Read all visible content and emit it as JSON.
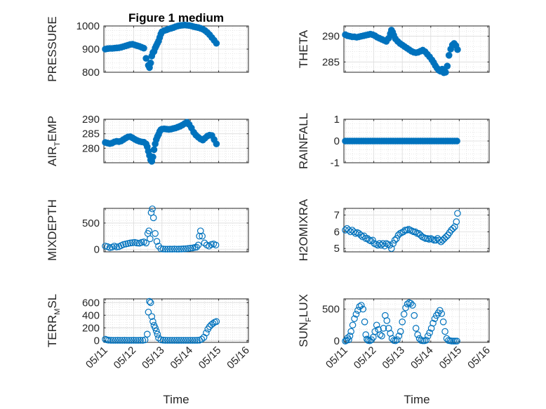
{
  "figure": {
    "title": "Figure 1 medium",
    "xlabel": "Time",
    "marker_color": "#0072BD",
    "axes_color": "#262626",
    "grid_color": "#d9d9d9"
  },
  "chart_data": [
    {
      "type": "scatter",
      "ylabel": "PRESSURE",
      "ylim": [
        800,
        1000
      ],
      "yticks": [
        "800",
        "900",
        "1000"
      ],
      "ytick_values": [
        800,
        900,
        1000
      ],
      "xlim": [
        0,
        4.1
      ],
      "grid": true,
      "filled": true,
      "x": [
        0,
        0.08,
        0.16,
        0.24,
        0.32,
        0.4,
        0.48,
        0.56,
        0.64,
        0.72,
        0.8,
        0.88,
        0.96,
        1.04,
        1.12,
        1.2,
        1.28,
        1.36,
        1.44,
        1.52,
        1.56,
        1.6,
        1.64,
        1.68,
        1.72,
        1.76,
        1.8,
        1.84,
        1.88,
        1.92,
        1.96,
        2.0,
        2.08,
        2.16,
        2.24,
        2.32,
        2.4,
        2.48,
        2.56,
        2.64,
        2.72,
        2.8,
        2.88,
        2.96,
        3.04,
        3.12,
        3.2,
        3.28,
        3.36,
        3.44,
        3.52,
        3.6,
        3.68,
        3.76,
        3.84,
        3.92
      ],
      "y": [
        900,
        902,
        903,
        903,
        904,
        905,
        906,
        908,
        911,
        914,
        917,
        920,
        921,
        918,
        915,
        912,
        908,
        904,
        860,
        830,
        820,
        840,
        870,
        885,
        890,
        905,
        915,
        925,
        935,
        950,
        965,
        975,
        980,
        983,
        987,
        990,
        993,
        997,
        1000,
        1002,
        1003,
        1004,
        1003,
        1002,
        1000,
        997,
        995,
        993,
        990,
        986,
        980,
        972,
        962,
        950,
        938,
        925
      ]
    },
    {
      "type": "scatter",
      "ylabel": "THETA",
      "ylim": [
        283,
        292
      ],
      "yticks": [
        "285",
        "290"
      ],
      "ytick_values": [
        285,
        290
      ],
      "xlim": [
        0,
        4.1
      ],
      "grid": true,
      "filled": true,
      "x": [
        0,
        0.08,
        0.16,
        0.24,
        0.32,
        0.4,
        0.48,
        0.56,
        0.64,
        0.72,
        0.8,
        0.88,
        0.96,
        1.04,
        1.12,
        1.2,
        1.28,
        1.36,
        1.44,
        1.52,
        1.58,
        1.62,
        1.66,
        1.7,
        1.76,
        1.84,
        1.92,
        2.0,
        2.08,
        2.16,
        2.24,
        2.32,
        2.4,
        2.48,
        2.56,
        2.64,
        2.72,
        2.8,
        2.88,
        2.96,
        3.04,
        3.1,
        3.16,
        3.22,
        3.28,
        3.34,
        3.4,
        3.46,
        3.52,
        3.58,
        3.64,
        3.7,
        3.76,
        3.82,
        3.88,
        3.94
      ],
      "y": [
        290.3,
        290.1,
        290.0,
        289.9,
        289.9,
        289.8,
        289.9,
        290.0,
        290.1,
        290.2,
        290.3,
        290.4,
        290.3,
        290.1,
        289.8,
        289.6,
        289.4,
        289.2,
        289.0,
        289.6,
        290.5,
        291.2,
        290.8,
        290.2,
        289.5,
        289.0,
        288.6,
        288.3,
        288.0,
        287.7,
        287.4,
        287.1,
        286.9,
        286.8,
        286.9,
        287.1,
        287.3,
        287.0,
        286.5,
        286.0,
        285.4,
        284.9,
        284.3,
        283.8,
        283.4,
        283.2,
        283.6,
        282.9,
        283.0,
        284.2,
        286.3,
        287.5,
        288.3,
        288.6,
        288.2,
        287.4
      ]
    },
    {
      "type": "scatter",
      "ylabel": "AIR_TEMP",
      "ylabel_parts": [
        "AIR",
        "T",
        "EMP"
      ],
      "ylim": [
        275,
        290
      ],
      "yticks": [
        "280",
        "285",
        "290"
      ],
      "ytick_values": [
        280,
        285,
        290
      ],
      "xlim": [
        0,
        4.1
      ],
      "grid": true,
      "filled": true,
      "x": [
        0,
        0.08,
        0.16,
        0.24,
        0.32,
        0.4,
        0.48,
        0.56,
        0.64,
        0.72,
        0.8,
        0.88,
        0.96,
        1.04,
        1.12,
        1.2,
        1.28,
        1.36,
        1.44,
        1.48,
        1.52,
        1.56,
        1.6,
        1.64,
        1.68,
        1.72,
        1.76,
        1.8,
        1.84,
        1.88,
        1.92,
        1.96,
        2.0,
        2.08,
        2.16,
        2.24,
        2.32,
        2.4,
        2.48,
        2.56,
        2.64,
        2.72,
        2.8,
        2.88,
        2.96,
        3.04,
        3.12,
        3.2,
        3.28,
        3.36,
        3.44,
        3.52,
        3.6,
        3.68,
        3.76,
        3.84,
        3.92
      ],
      "y": [
        282.0,
        281.8,
        281.6,
        281.8,
        282.2,
        282.4,
        282.3,
        282.5,
        283.0,
        283.5,
        283.9,
        284.0,
        283.6,
        283.1,
        282.7,
        282.4,
        282.2,
        282.1,
        281.5,
        280.5,
        279.0,
        277.5,
        276.0,
        275.5,
        277.0,
        279.5,
        281.5,
        283.0,
        284.0,
        284.8,
        285.8,
        286.4,
        286.6,
        286.7,
        286.6,
        286.5,
        286.6,
        286.8,
        287.0,
        287.3,
        287.6,
        288.0,
        288.5,
        289.0,
        288.2,
        287.0,
        285.5,
        284.5,
        283.8,
        283.2,
        282.8,
        283.5,
        284.2,
        284.5,
        284.4,
        283.0,
        281.5
      ]
    },
    {
      "type": "scatter",
      "ylabel": "RAINFALL",
      "ylim": [
        -1,
        1
      ],
      "yticks": [
        "-1",
        "0",
        "1"
      ],
      "ytick_values": [
        -1,
        0,
        1
      ],
      "xlim": [
        0,
        4.1
      ],
      "grid": true,
      "filled": true,
      "x": [
        0,
        0.08,
        0.16,
        0.24,
        0.32,
        0.4,
        0.48,
        0.56,
        0.64,
        0.72,
        0.8,
        0.88,
        0.96,
        1.04,
        1.12,
        1.2,
        1.28,
        1.36,
        1.44,
        1.52,
        1.6,
        1.68,
        1.76,
        1.84,
        1.92,
        2.0,
        2.08,
        2.16,
        2.24,
        2.32,
        2.4,
        2.48,
        2.56,
        2.64,
        2.72,
        2.8,
        2.88,
        2.96,
        3.04,
        3.12,
        3.2,
        3.28,
        3.36,
        3.44,
        3.52,
        3.6,
        3.68,
        3.76,
        3.84,
        3.92
      ],
      "y": [
        0,
        0,
        0,
        0,
        0,
        0,
        0,
        0,
        0,
        0,
        0,
        0,
        0,
        0,
        0,
        0,
        0,
        0,
        0,
        0,
        0,
        0,
        0,
        0,
        0,
        0,
        0,
        0,
        0,
        0,
        0,
        0,
        0,
        0,
        0,
        0,
        0,
        0,
        0,
        0,
        0,
        0,
        0,
        0,
        0,
        0,
        0,
        0,
        0,
        0
      ]
    },
    {
      "type": "scatter",
      "ylabel": "MIXDEPTH",
      "ylim": [
        -50,
        780
      ],
      "yticks": [
        "0",
        "500"
      ],
      "ytick_values": [
        0,
        500
      ],
      "xlim": [
        0,
        4.1
      ],
      "grid": true,
      "filled": false,
      "x": [
        0,
        0.08,
        0.16,
        0.24,
        0.32,
        0.4,
        0.48,
        0.56,
        0.64,
        0.72,
        0.8,
        0.88,
        0.96,
        1.04,
        1.12,
        1.2,
        1.28,
        1.36,
        1.44,
        1.5,
        1.54,
        1.58,
        1.62,
        1.66,
        1.7,
        1.76,
        1.82,
        1.88,
        1.96,
        2.04,
        2.12,
        2.2,
        2.28,
        2.36,
        2.44,
        2.52,
        2.6,
        2.68,
        2.76,
        2.84,
        2.92,
        3.0,
        3.08,
        3.16,
        3.22,
        3.28,
        3.32,
        3.36,
        3.42,
        3.5,
        3.58,
        3.66,
        3.74,
        3.82,
        3.9
      ],
      "y": [
        60,
        50,
        30,
        40,
        60,
        45,
        50,
        70,
        90,
        100,
        110,
        120,
        125,
        130,
        120,
        115,
        130,
        140,
        120,
        300,
        350,
        200,
        700,
        770,
        600,
        300,
        150,
        60,
        10,
        5,
        2,
        2,
        3,
        2,
        5,
        2,
        3,
        5,
        8,
        10,
        15,
        20,
        25,
        35,
        40,
        80,
        250,
        350,
        250,
        120,
        80,
        60,
        90,
        100,
        80
      ]
    },
    {
      "type": "scatter",
      "ylabel": "H2OMIXRA",
      "ylim": [
        4.8,
        7.4
      ],
      "yticks": [
        "5",
        "6",
        "7"
      ],
      "ytick_values": [
        5,
        6,
        7
      ],
      "xlim": [
        0,
        4.1
      ],
      "grid": true,
      "filled": false,
      "x": [
        0,
        0.06,
        0.12,
        0.18,
        0.24,
        0.3,
        0.36,
        0.42,
        0.48,
        0.54,
        0.6,
        0.66,
        0.72,
        0.78,
        0.84,
        0.9,
        0.96,
        1.02,
        1.08,
        1.14,
        1.2,
        1.26,
        1.32,
        1.38,
        1.44,
        1.5,
        1.56,
        1.62,
        1.68,
        1.74,
        1.8,
        1.86,
        1.92,
        1.98,
        2.04,
        2.1,
        2.16,
        2.22,
        2.28,
        2.34,
        2.4,
        2.46,
        2.52,
        2.58,
        2.64,
        2.7,
        2.76,
        2.82,
        2.88,
        2.94,
        3.0,
        3.06,
        3.12,
        3.18,
        3.24,
        3.3,
        3.36,
        3.42,
        3.48,
        3.54,
        3.6,
        3.66,
        3.72,
        3.78,
        3.84,
        3.9,
        3.94
      ],
      "y": [
        6.1,
        6.2,
        6.1,
        6.0,
        6.1,
        6.0,
        5.9,
        5.95,
        5.9,
        5.8,
        5.7,
        5.75,
        5.6,
        5.6,
        5.5,
        5.45,
        5.5,
        5.3,
        5.25,
        5.2,
        5.3,
        5.2,
        5.3,
        5.15,
        5.3,
        5.25,
        5.2,
        5.0,
        5.3,
        5.5,
        5.6,
        5.8,
        5.9,
        5.95,
        6.0,
        6.1,
        6.1,
        6.15,
        6.1,
        6.05,
        6.0,
        6.0,
        5.9,
        5.9,
        5.8,
        5.7,
        5.65,
        5.6,
        5.6,
        5.55,
        5.6,
        5.55,
        5.5,
        5.5,
        5.6,
        5.5,
        5.4,
        5.5,
        5.6,
        5.7,
        5.8,
        5.95,
        6.1,
        6.2,
        6.3,
        6.6,
        7.1
      ]
    },
    {
      "type": "scatter",
      "ylabel": "TERR_MSL",
      "ylabel_parts": [
        "TERR",
        "M",
        "SL"
      ],
      "ylim": [
        -30,
        660
      ],
      "yticks": [
        "0",
        "200",
        "400",
        "600"
      ],
      "ytick_values": [
        0,
        200,
        400,
        600
      ],
      "xlim": [
        0,
        4.1
      ],
      "grid": true,
      "filled": false,
      "x": [
        0,
        0.06,
        0.12,
        0.2,
        0.28,
        0.36,
        0.44,
        0.52,
        0.6,
        0.68,
        0.76,
        0.84,
        0.92,
        1.0,
        1.08,
        1.16,
        1.24,
        1.32,
        1.4,
        1.48,
        1.52,
        1.56,
        1.6,
        1.64,
        1.68,
        1.72,
        1.76,
        1.8,
        1.84,
        1.88,
        1.96,
        2.04,
        2.12,
        2.2,
        2.28,
        2.36,
        2.44,
        2.52,
        2.6,
        2.68,
        2.76,
        2.84,
        2.92,
        3.0,
        3.08,
        3.16,
        3.24,
        3.32,
        3.4,
        3.48,
        3.56,
        3.62,
        3.68,
        3.74,
        3.8,
        3.86,
        3.92
      ],
      "y": [
        20,
        10,
        5,
        3,
        2,
        2,
        3,
        2,
        2,
        3,
        2,
        2,
        2,
        3,
        2,
        2,
        3,
        2,
        10,
        100,
        450,
        620,
        600,
        380,
        300,
        240,
        200,
        150,
        100,
        40,
        10,
        5,
        3,
        2,
        2,
        2,
        2,
        2,
        2,
        2,
        2,
        2,
        2,
        2,
        2,
        2,
        3,
        5,
        20,
        50,
        120,
        180,
        220,
        250,
        270,
        290,
        300
      ]
    },
    {
      "type": "scatter",
      "ylabel": "SUN_FLUX",
      "ylabel_parts": [
        "SUN",
        "F",
        "LUX"
      ],
      "ylim": [
        -20,
        660
      ],
      "yticks": [
        "0",
        "500"
      ],
      "ytick_values": [
        0,
        500
      ],
      "xlim": [
        0,
        4.1
      ],
      "grid": true,
      "filled": false,
      "x": [
        0,
        0.04,
        0.08,
        0.12,
        0.16,
        0.2,
        0.26,
        0.32,
        0.38,
        0.44,
        0.5,
        0.56,
        0.62,
        0.68,
        0.72,
        0.76,
        0.8,
        0.86,
        0.92,
        0.98,
        1.04,
        1.1,
        1.16,
        1.22,
        1.28,
        1.34,
        1.4,
        1.46,
        1.52,
        1.58,
        1.64,
        1.7,
        1.76,
        1.82,
        1.88,
        1.94,
        2.0,
        2.06,
        2.12,
        2.18,
        2.24,
        2.3,
        2.36,
        2.42,
        2.48,
        2.54,
        2.6,
        2.66,
        2.72,
        2.78,
        2.84,
        2.9,
        2.96,
        3.02,
        3.08,
        3.14,
        3.2,
        3.26,
        3.32,
        3.38,
        3.44,
        3.5,
        3.56,
        3.62,
        3.68,
        3.74,
        3.8,
        3.86,
        3.92
      ],
      "y": [
        0,
        10,
        50,
        20,
        80,
        150,
        250,
        350,
        420,
        480,
        540,
        560,
        500,
        300,
        100,
        30,
        10,
        5,
        20,
        60,
        150,
        250,
        180,
        100,
        80,
        200,
        400,
        320,
        200,
        120,
        40,
        10,
        5,
        20,
        80,
        150,
        300,
        420,
        520,
        580,
        600,
        590,
        560,
        400,
        200,
        100,
        40,
        10,
        5,
        5,
        15,
        80,
        130,
        200,
        280,
        350,
        400,
        440,
        480,
        430,
        300,
        150,
        40,
        10,
        5,
        0,
        0,
        0,
        0
      ]
    }
  ],
  "xaxis": {
    "ticks": [
      "05/11",
      "05/12",
      "05/13",
      "05/14",
      "05/15",
      "05/16"
    ],
    "tick_values": [
      0,
      1,
      2,
      3,
      4,
      5
    ],
    "xlim": [
      -0.05,
      5.05
    ]
  }
}
